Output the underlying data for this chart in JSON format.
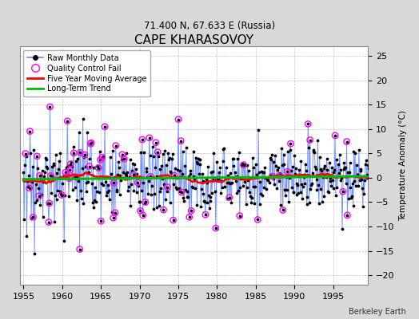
{
  "title": "CAPE KHARASOVOY",
  "subtitle": "71.400 N, 67.633 E (Russia)",
  "ylabel": "Temperature Anomaly (°C)",
  "xlabel_bottom": "Berkeley Earth",
  "xlim": [
    1954.5,
    1999.5
  ],
  "ylim": [
    -22,
    27
  ],
  "yticks": [
    -20,
    -15,
    -10,
    -5,
    0,
    5,
    10,
    15,
    20,
    25
  ],
  "xticks": [
    1955,
    1960,
    1965,
    1970,
    1975,
    1980,
    1985,
    1990,
    1995
  ],
  "background_color": "#d8d8d8",
  "plot_bg_color": "#ffffff",
  "raw_line_color": "#6688ff",
  "raw_dot_color": "#000000",
  "qc_fail_color": "#ff00ff",
  "moving_avg_color": "#ff0000",
  "trend_color": "#00bb00",
  "seed": 17
}
